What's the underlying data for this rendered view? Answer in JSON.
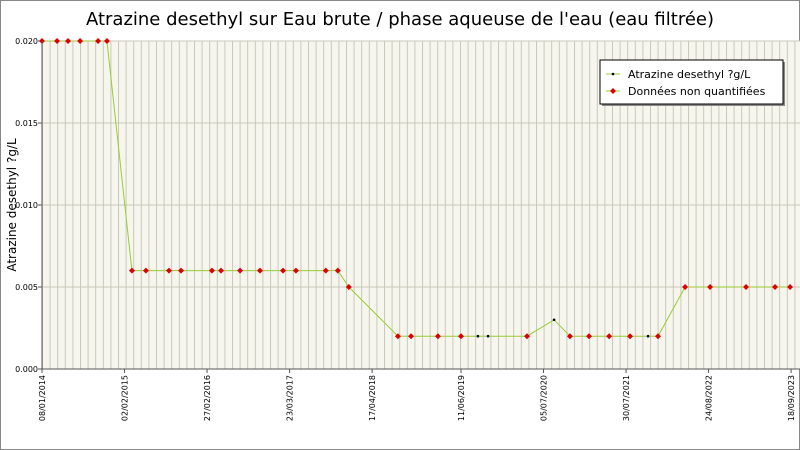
{
  "chart_data": {
    "type": "line",
    "title": "Atrazine desethyl sur Eau brute / phase aqueuse de l'eau (eau filtrée)",
    "y_label": "Atrazine desethyl ?g/L",
    "line_color": "#99cc33",
    "grid": true,
    "legend": "upper right",
    "xlim": [
      "2014-01-08",
      "2023-10-30"
    ],
    "xticks": [
      {
        "value": "2014-01-08",
        "label": "08/01/2014"
      },
      {
        "value": "2015-02-02",
        "label": "02/02/2015"
      },
      {
        "value": "2016-02-27",
        "label": "27/02/2016"
      },
      {
        "value": "2017-03-23",
        "label": "23/03/2017"
      },
      {
        "value": "2018-04-17",
        "label": "17/04/2018"
      },
      {
        "value": "2019-06-11",
        "label": "11/06/2019"
      },
      {
        "value": "2020-07-05",
        "label": "05/07/2020"
      },
      {
        "value": "2021-07-30",
        "label": "30/07/2021"
      },
      {
        "value": "2022-08-24",
        "label": "24/08/2022"
      },
      {
        "value": "2023-09-18",
        "label": "18/09/2023"
      }
    ],
    "ylim": [
      0,
      0.02
    ],
    "yticks": [
      {
        "value": 0,
        "label": "0.000"
      },
      {
        "value": 0.005,
        "label": "0.005"
      },
      {
        "value": 0.01,
        "label": "0.010"
      },
      {
        "value": 0.015,
        "label": "0.015"
      },
      {
        "value": 0.02,
        "label": "0.020"
      }
    ],
    "series": [
      {
        "name": "Atrazine desethyl ?g/L",
        "color": "#000000",
        "marker": "dot",
        "x": [
          "2019-08-30",
          "2019-10-17",
          "2020-08-24",
          "2021-11-11"
        ],
        "values": [
          0.002,
          0.002,
          0.003,
          0.002
        ]
      },
      {
        "name": "Données non quantifiées",
        "color": "#dd0000",
        "marker": "diamond",
        "x": [
          "2014-01-08",
          "2014-03-20",
          "2014-05-11",
          "2014-07-07",
          "2014-09-30",
          "2014-11-11",
          "2015-03-09",
          "2015-05-14",
          "2015-08-31",
          "2015-10-27",
          "2016-03-21",
          "2016-05-03",
          "2016-08-01",
          "2016-11-03",
          "2017-02-20",
          "2017-04-22",
          "2017-09-10",
          "2017-11-06",
          "2017-12-28",
          "2018-08-17",
          "2018-10-18",
          "2019-02-22",
          "2019-06-11",
          "2020-04-18",
          "2020-11-07",
          "2021-02-05",
          "2021-05-11",
          "2021-08-18",
          "2021-12-28",
          "2022-05-05",
          "2022-08-31",
          "2023-02-17",
          "2023-07-04",
          "2023-09-13"
        ],
        "values": [
          0.02,
          0.02,
          0.02,
          0.02,
          0.02,
          0.02,
          0.006,
          0.006,
          0.006,
          0.006,
          0.006,
          0.006,
          0.006,
          0.006,
          0.006,
          0.006,
          0.006,
          0.006,
          0.005,
          0.002,
          0.002,
          0.002,
          0.002,
          0.002,
          0.002,
          0.002,
          0.002,
          0.002,
          0.002,
          0.005,
          0.005,
          0.005,
          0.005,
          0.005
        ]
      }
    ]
  }
}
